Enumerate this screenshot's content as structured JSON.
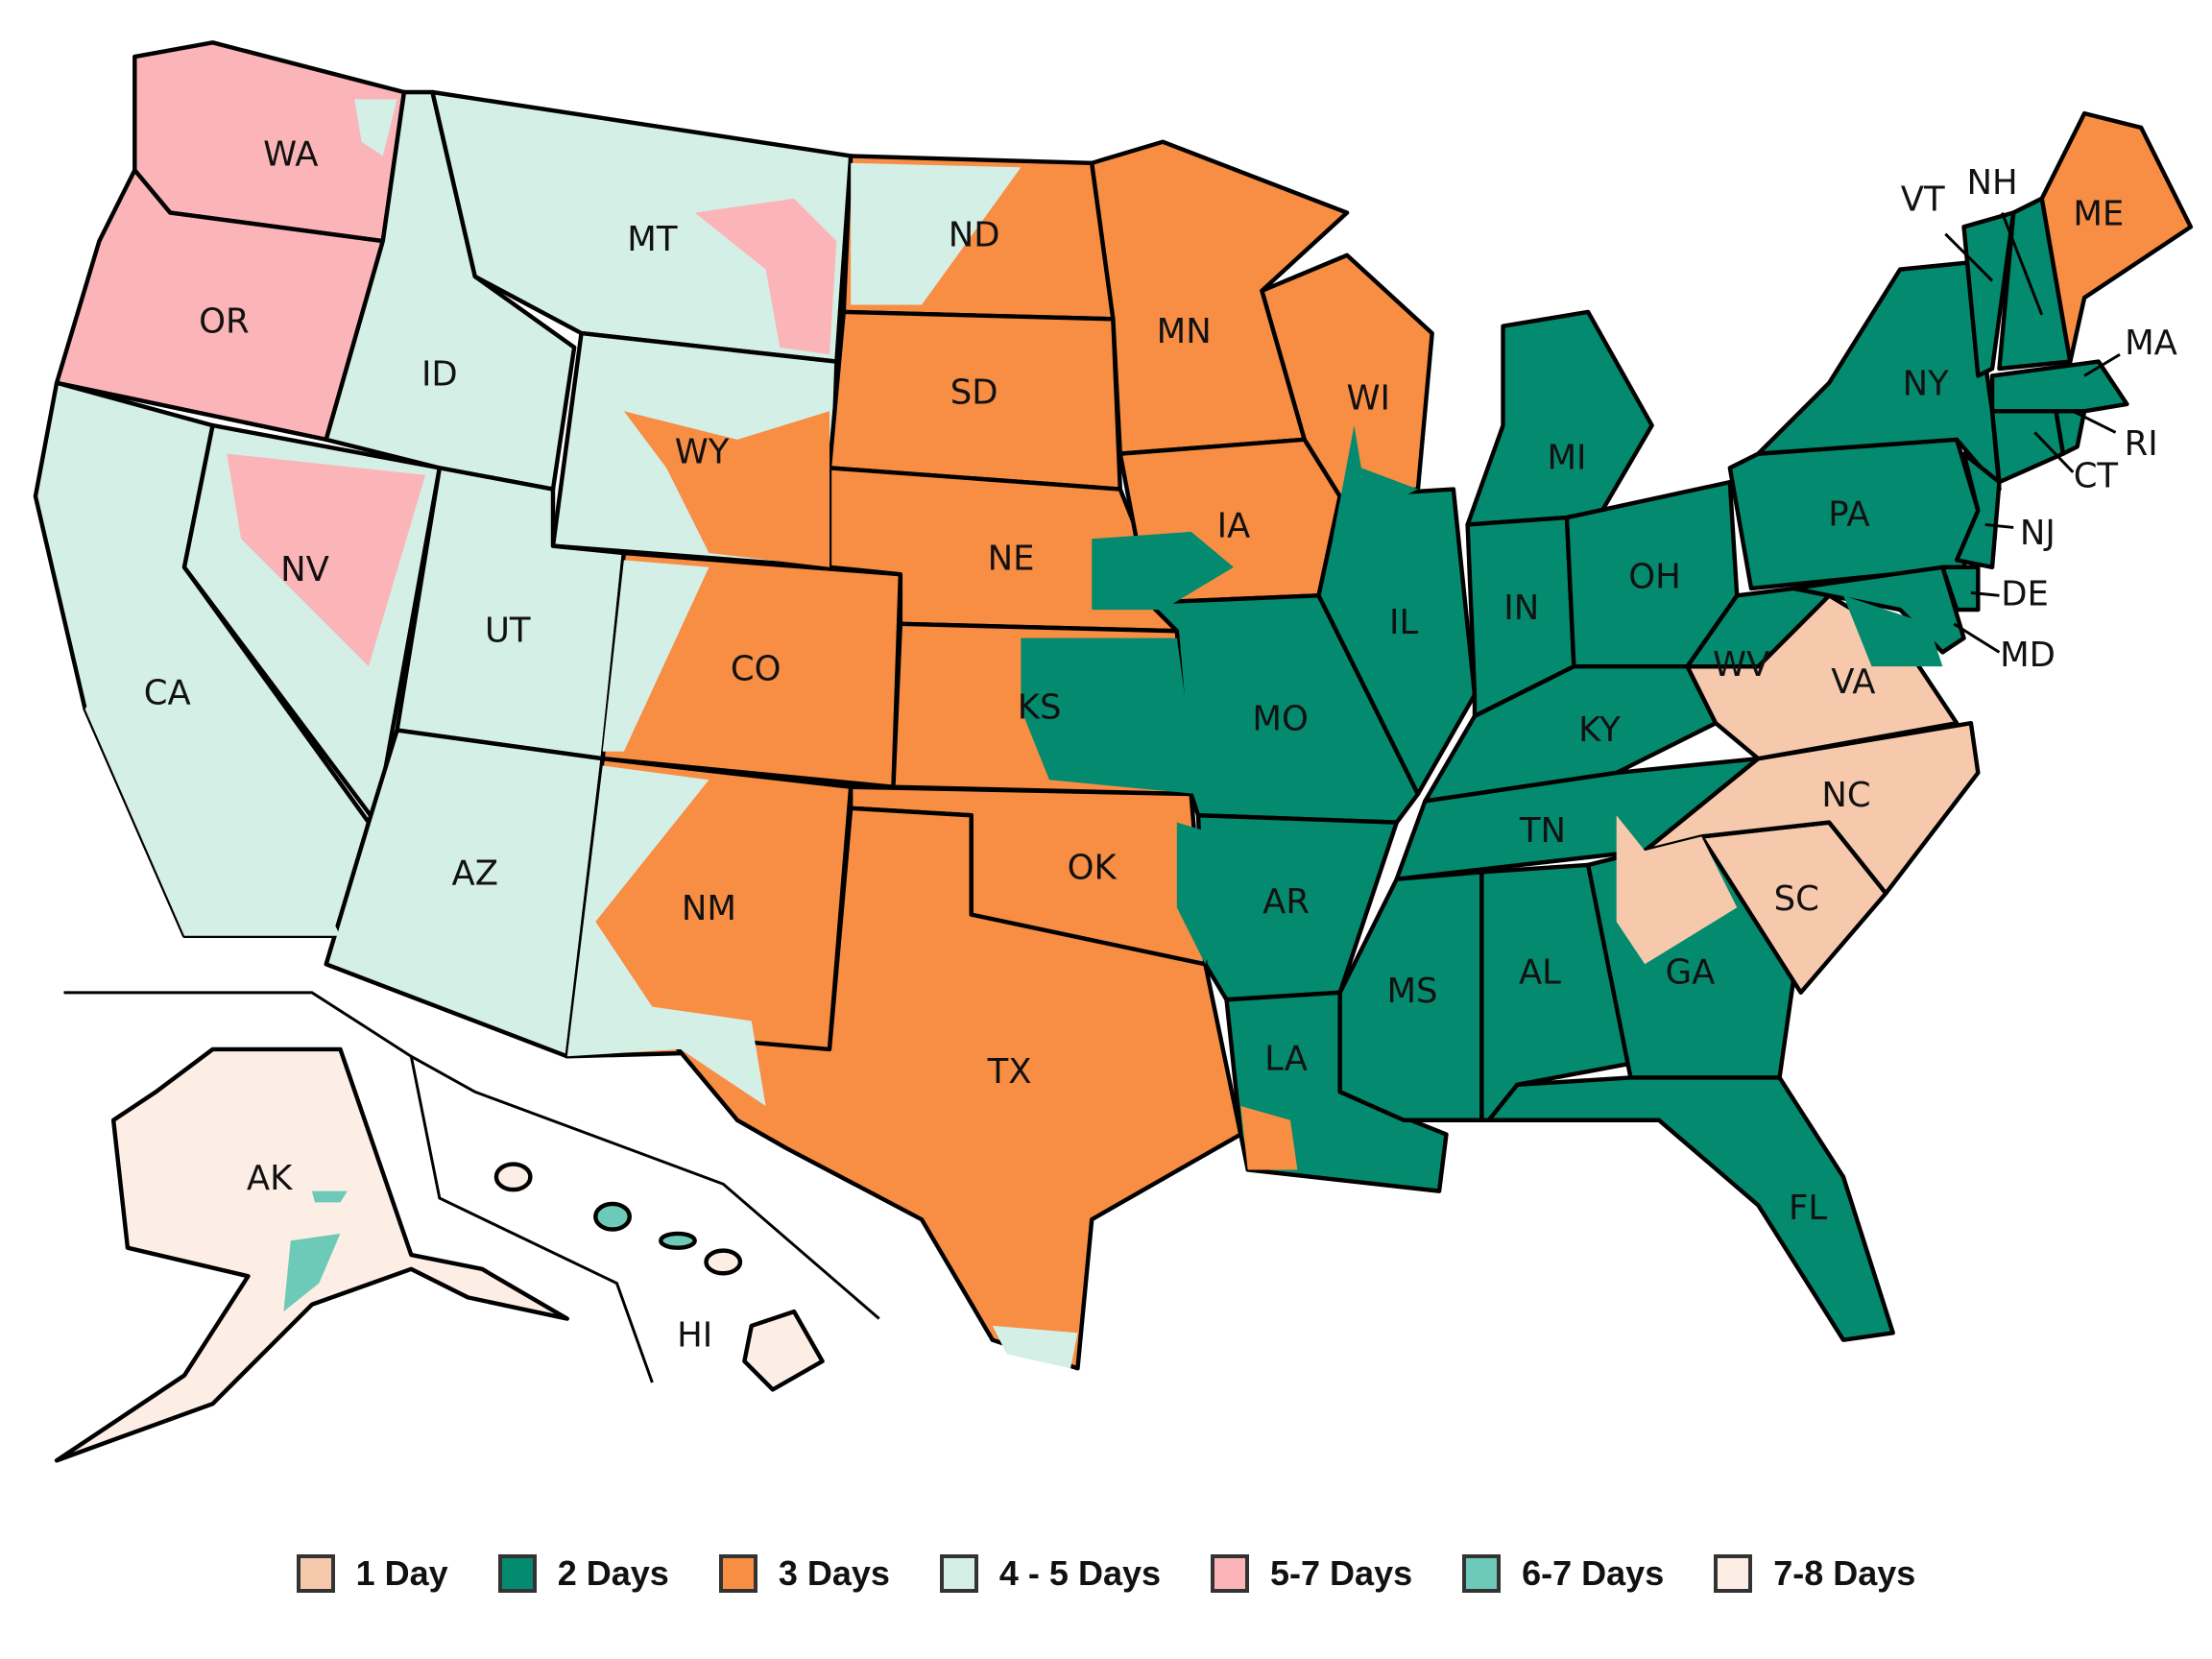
{
  "legend": [
    {
      "label": "1 Day",
      "color": "#f6c9ad"
    },
    {
      "label": "2 Days",
      "color": "#048a6e"
    },
    {
      "label": "3 Days",
      "color": "#f88d44"
    },
    {
      "label": "4 - 5 Days",
      "color": "#d4efe6"
    },
    {
      "label": "5-7 Days",
      "color": "#fbb5b9"
    },
    {
      "label": "6-7 Days",
      "color": "#6dcab8"
    },
    {
      "label": "7-8 Days",
      "color": "#fdeee5"
    }
  ],
  "states": [
    {
      "abbr": "WA",
      "cat": 4
    },
    {
      "abbr": "OR",
      "cat": 4
    },
    {
      "abbr": "CA",
      "cat": 3
    },
    {
      "abbr": "NV",
      "cat": 3
    },
    {
      "abbr": "ID",
      "cat": 3
    },
    {
      "abbr": "MT",
      "cat": 3
    },
    {
      "abbr": "WY",
      "cat": 3
    },
    {
      "abbr": "UT",
      "cat": 3
    },
    {
      "abbr": "CO",
      "cat": 2
    },
    {
      "abbr": "AZ",
      "cat": 3
    },
    {
      "abbr": "NM",
      "cat": 2
    },
    {
      "abbr": "ND",
      "cat": 2
    },
    {
      "abbr": "SD",
      "cat": 2
    },
    {
      "abbr": "NE",
      "cat": 2
    },
    {
      "abbr": "KS",
      "cat": 2
    },
    {
      "abbr": "OK",
      "cat": 2
    },
    {
      "abbr": "TX",
      "cat": 2
    },
    {
      "abbr": "MN",
      "cat": 2
    },
    {
      "abbr": "IA",
      "cat": 2
    },
    {
      "abbr": "MO",
      "cat": 1
    },
    {
      "abbr": "AR",
      "cat": 1
    },
    {
      "abbr": "LA",
      "cat": 1
    },
    {
      "abbr": "WI",
      "cat": 2
    },
    {
      "abbr": "IL",
      "cat": 1
    },
    {
      "abbr": "MI",
      "cat": 1
    },
    {
      "abbr": "IN",
      "cat": 1
    },
    {
      "abbr": "OH",
      "cat": 1
    },
    {
      "abbr": "KY",
      "cat": 1
    },
    {
      "abbr": "TN",
      "cat": 1
    },
    {
      "abbr": "MS",
      "cat": 1
    },
    {
      "abbr": "AL",
      "cat": 1
    },
    {
      "abbr": "GA",
      "cat": 1
    },
    {
      "abbr": "FL",
      "cat": 1
    },
    {
      "abbr": "SC",
      "cat": 0
    },
    {
      "abbr": "NC",
      "cat": 0
    },
    {
      "abbr": "VA",
      "cat": 0
    },
    {
      "abbr": "WV",
      "cat": 1
    },
    {
      "abbr": "PA",
      "cat": 1
    },
    {
      "abbr": "NY",
      "cat": 1
    },
    {
      "abbr": "VT",
      "cat": 1
    },
    {
      "abbr": "NH",
      "cat": 1
    },
    {
      "abbr": "ME",
      "cat": 2
    },
    {
      "abbr": "MA",
      "cat": 1
    },
    {
      "abbr": "CT",
      "cat": 1
    },
    {
      "abbr": "RI",
      "cat": 1
    },
    {
      "abbr": "NJ",
      "cat": 1
    },
    {
      "abbr": "DE",
      "cat": 1
    },
    {
      "abbr": "MD",
      "cat": 1
    },
    {
      "abbr": "AK",
      "cat": 6
    },
    {
      "abbr": "HI",
      "cat": 6
    }
  ]
}
